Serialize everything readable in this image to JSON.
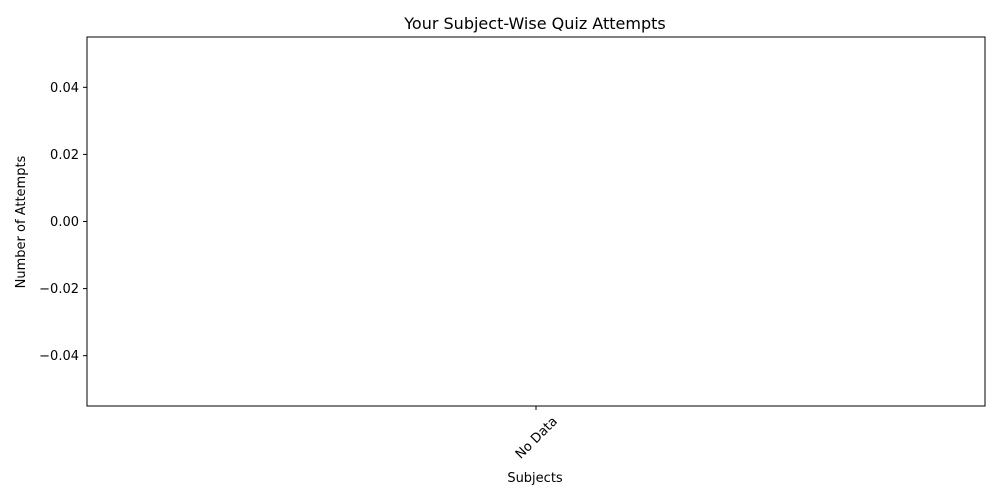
{
  "chart_data": {
    "type": "bar",
    "title": "Your Subject-Wise Quiz Attempts",
    "xlabel": "Subjects",
    "ylabel": "Number of Attempts",
    "categories": [
      "No Data"
    ],
    "values": [
      0
    ],
    "ylim": [
      -0.055,
      0.055
    ],
    "yticks": [
      -0.04,
      -0.02,
      0.0,
      0.02,
      0.04
    ],
    "ytick_labels": [
      "−0.04",
      "−0.02",
      "0.00",
      "0.02",
      "0.04"
    ],
    "xtick_rotation_deg": 45,
    "grid": false,
    "legend": "none"
  }
}
